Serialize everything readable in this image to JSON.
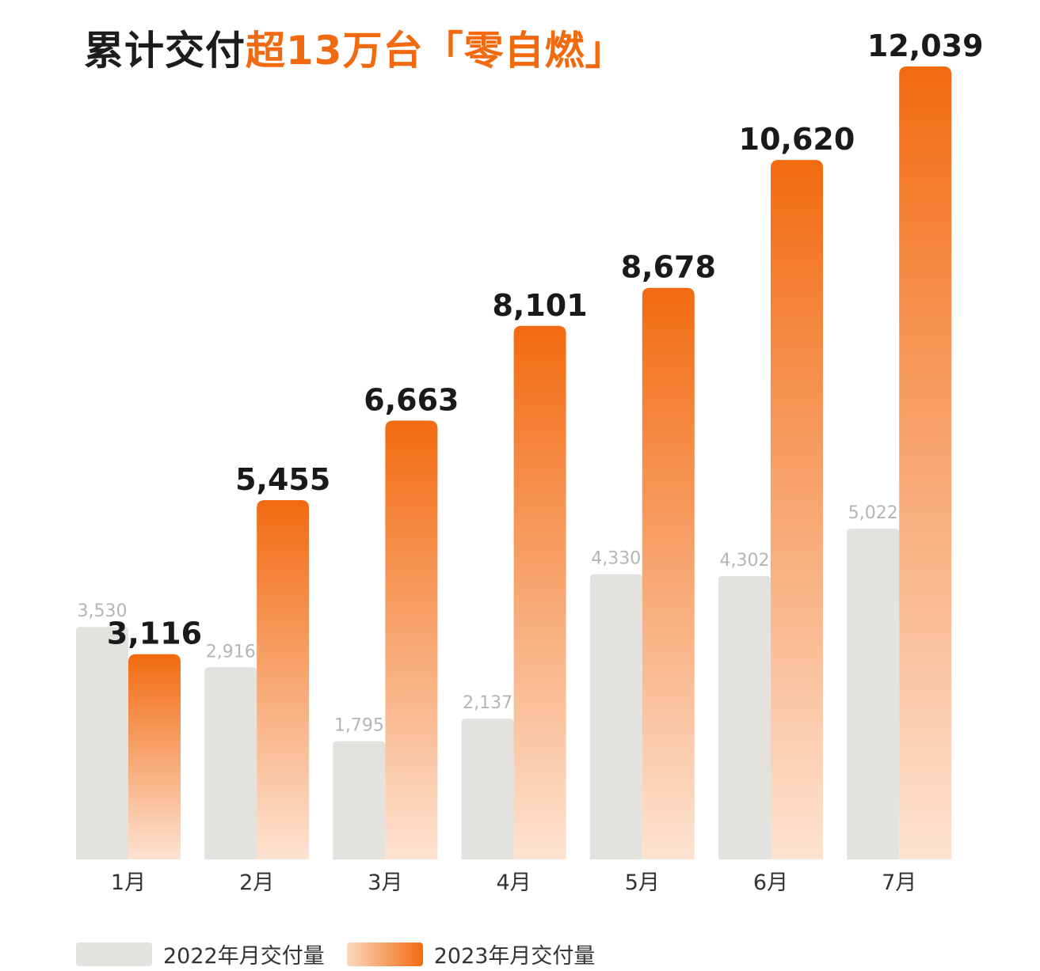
{
  "title": {
    "prefix": "累计交付",
    "highlight": "超13万台「零自燃」"
  },
  "chart_data": {
    "type": "bar",
    "categories": [
      "1月",
      "2月",
      "3月",
      "4月",
      "5月",
      "6月",
      "7月"
    ],
    "series": [
      {
        "name": "2022年月交付量",
        "values": [
          3530,
          2916,
          1795,
          2137,
          4330,
          4302,
          5022
        ],
        "labels": [
          "3,530",
          "2,916",
          "1,795",
          "2,137",
          "4,330",
          "4,302",
          "5,022"
        ]
      },
      {
        "name": "2023年月交付量",
        "values": [
          3116,
          5455,
          6663,
          8101,
          8678,
          10620,
          12039
        ],
        "labels": [
          "3,116",
          "5,455",
          "6,663",
          "8,101",
          "8,678",
          "10,620",
          "12,039"
        ]
      }
    ],
    "ylim": [
      0,
      12039
    ],
    "grid": false,
    "legend_position": "bottom-left",
    "colors": {
      "s2022": "#e3e2df",
      "s2023_top": "#f26a10",
      "s2023_bottom": "#fde3d2",
      "label_2022": "#b5b5b5",
      "label_2023": "#1a1a1a",
      "axis_label": "#333333"
    }
  }
}
